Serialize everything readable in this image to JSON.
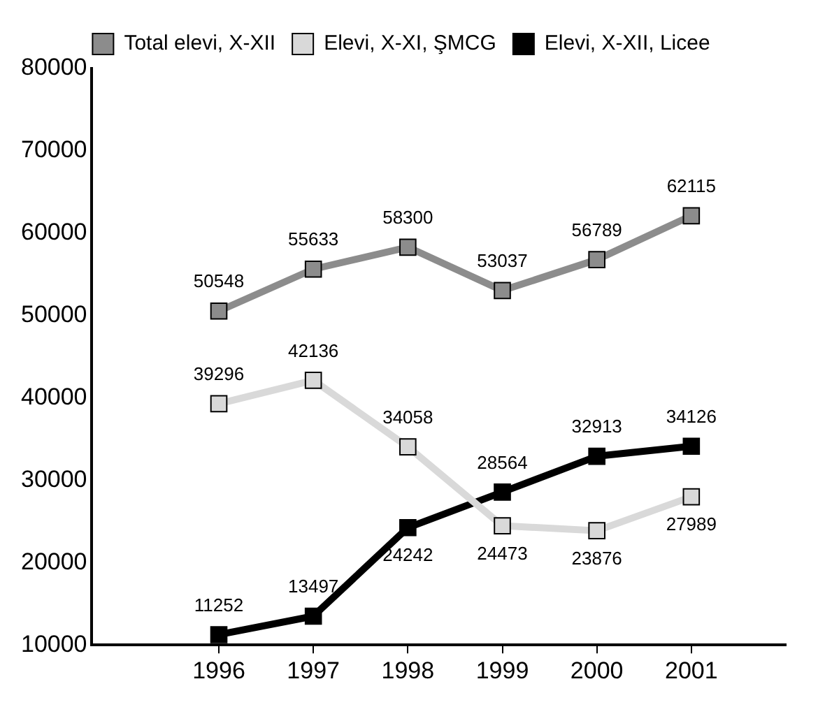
{
  "chart_data": {
    "type": "line",
    "x": [
      1996,
      1997,
      1998,
      1999,
      2000,
      2001
    ],
    "xlim": [
      1994.65,
      2002
    ],
    "xticks": [
      1996,
      1997,
      1998,
      1999,
      2000,
      2001
    ],
    "ylim": [
      10000,
      80000
    ],
    "yticks": [
      10000,
      20000,
      30000,
      40000,
      50000,
      60000,
      70000,
      80000
    ],
    "grid": false,
    "legend": "top",
    "marker": "square",
    "data_labels": true,
    "series": [
      {
        "name": "Total elevi, X-XII",
        "color": "#8c8c8c",
        "values": [
          50548,
          55633,
          58300,
          53037,
          56789,
          62115
        ]
      },
      {
        "name": "Elevi, X-XI, ŞMCG",
        "color": "#d9d9d9",
        "values": [
          39296,
          42136,
          34058,
          24473,
          23876,
          27989
        ]
      },
      {
        "name": "Elevi, X-XII, Licee",
        "color": "#000000",
        "values": [
          11252,
          13497,
          24242,
          28564,
          32913,
          34126
        ]
      }
    ]
  }
}
